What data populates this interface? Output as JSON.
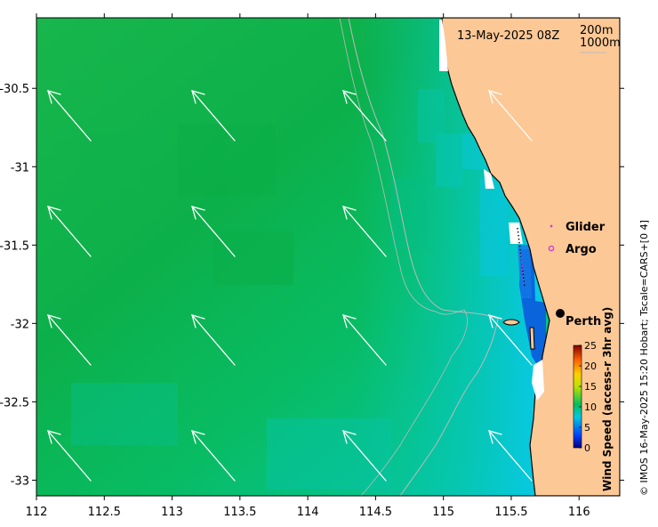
{
  "map": {
    "timestamp": "13-May-2025 08Z",
    "contours": [
      "200m",
      "1000m"
    ],
    "x_ticks": [
      "112",
      "112.5",
      "113",
      "113.5",
      "114",
      "114.5",
      "115",
      "115.5",
      "116"
    ],
    "y_ticks": [
      "-30.5",
      "-31",
      "-31.5",
      "-32",
      "-32.5",
      "-33"
    ],
    "x_range": [
      112,
      116.3
    ],
    "y_range": [
      -33.1,
      -30.05
    ],
    "legend": [
      {
        "label": "Glider",
        "color": "#d040d0"
      },
      {
        "label": "Argo",
        "color": "#d040d0"
      }
    ],
    "city": {
      "name": "Perth",
      "lon": 115.86,
      "lat": -31.95
    },
    "colorbar": {
      "title": "Wind Speed (access-r 3hr avg)",
      "ticks": [
        "0",
        "5",
        "10",
        "15",
        "20",
        "25"
      ],
      "range": [
        0,
        25
      ]
    },
    "credit": "© IMOS 16-May-2025 15:20 Hobart; Tscale=CARS+[0 4]",
    "colors": {
      "land": "#fcc896",
      "ocean_high": "#0cb04a",
      "ocean_low": "#06c8dc",
      "nearshore": "#0a64dc"
    }
  }
}
